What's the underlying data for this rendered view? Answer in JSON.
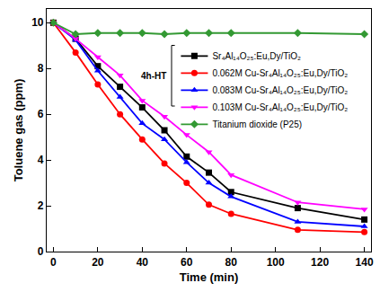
{
  "chart_data": {
    "type": "line",
    "x_label": "Time (min)",
    "y_label": "Toluene gas (ppm)",
    "x": [
      0,
      10,
      20,
      30,
      40,
      50,
      60,
      70,
      80,
      110,
      140
    ],
    "xlim": [
      -3,
      143
    ],
    "xticks": [
      0,
      20,
      40,
      60,
      80,
      100,
      120,
      140
    ],
    "ylim": [
      0,
      10.6
    ],
    "yticks": [
      0,
      2,
      4,
      6,
      8,
      10
    ],
    "grid": false,
    "legend": "upper right",
    "annotations": [
      "4h-HT"
    ],
    "series": [
      {
        "name": "Sr₄Al₁₄O₂₅:Eu,Dy/TiO₂",
        "color": "#000000",
        "marker": "square",
        "values": [
          10,
          9.3,
          8.1,
          7.2,
          6.3,
          5.3,
          4.15,
          3.45,
          2.6,
          1.9,
          1.4
        ]
      },
      {
        "name": "0.062M Cu-Sr₄Al₁₄O₂₅:Eu,Dy/TiO₂",
        "color": "#ff0000",
        "marker": "circle",
        "values": [
          10,
          8.7,
          7.3,
          6.0,
          4.9,
          3.85,
          3.0,
          2.05,
          1.65,
          0.95,
          0.85
        ]
      },
      {
        "name": "0.083M Cu-Sr₄Al₁₄O₂₅:Eu,Dy/TiO₂",
        "color": "#0000ff",
        "marker": "triangle-up",
        "values": [
          10,
          9.25,
          7.9,
          6.75,
          5.6,
          4.9,
          3.9,
          3.0,
          2.4,
          1.3,
          1.1
        ]
      },
      {
        "name": "0.103M Cu-Sr₄Al₁₄O₂₅:Eu,Dy/TiO₂",
        "color": "#ff00ff",
        "marker": "triangle-down",
        "values": [
          10,
          9.3,
          8.5,
          7.7,
          6.6,
          5.9,
          5.1,
          4.35,
          3.35,
          2.15,
          1.85
        ]
      },
      {
        "name": "Titanium dioxide (P25)",
        "color": "#339933",
        "marker": "diamond",
        "values": [
          10,
          9.5,
          9.55,
          9.55,
          9.55,
          9.5,
          9.55,
          9.55,
          9.55,
          9.55,
          9.5
        ]
      }
    ]
  }
}
